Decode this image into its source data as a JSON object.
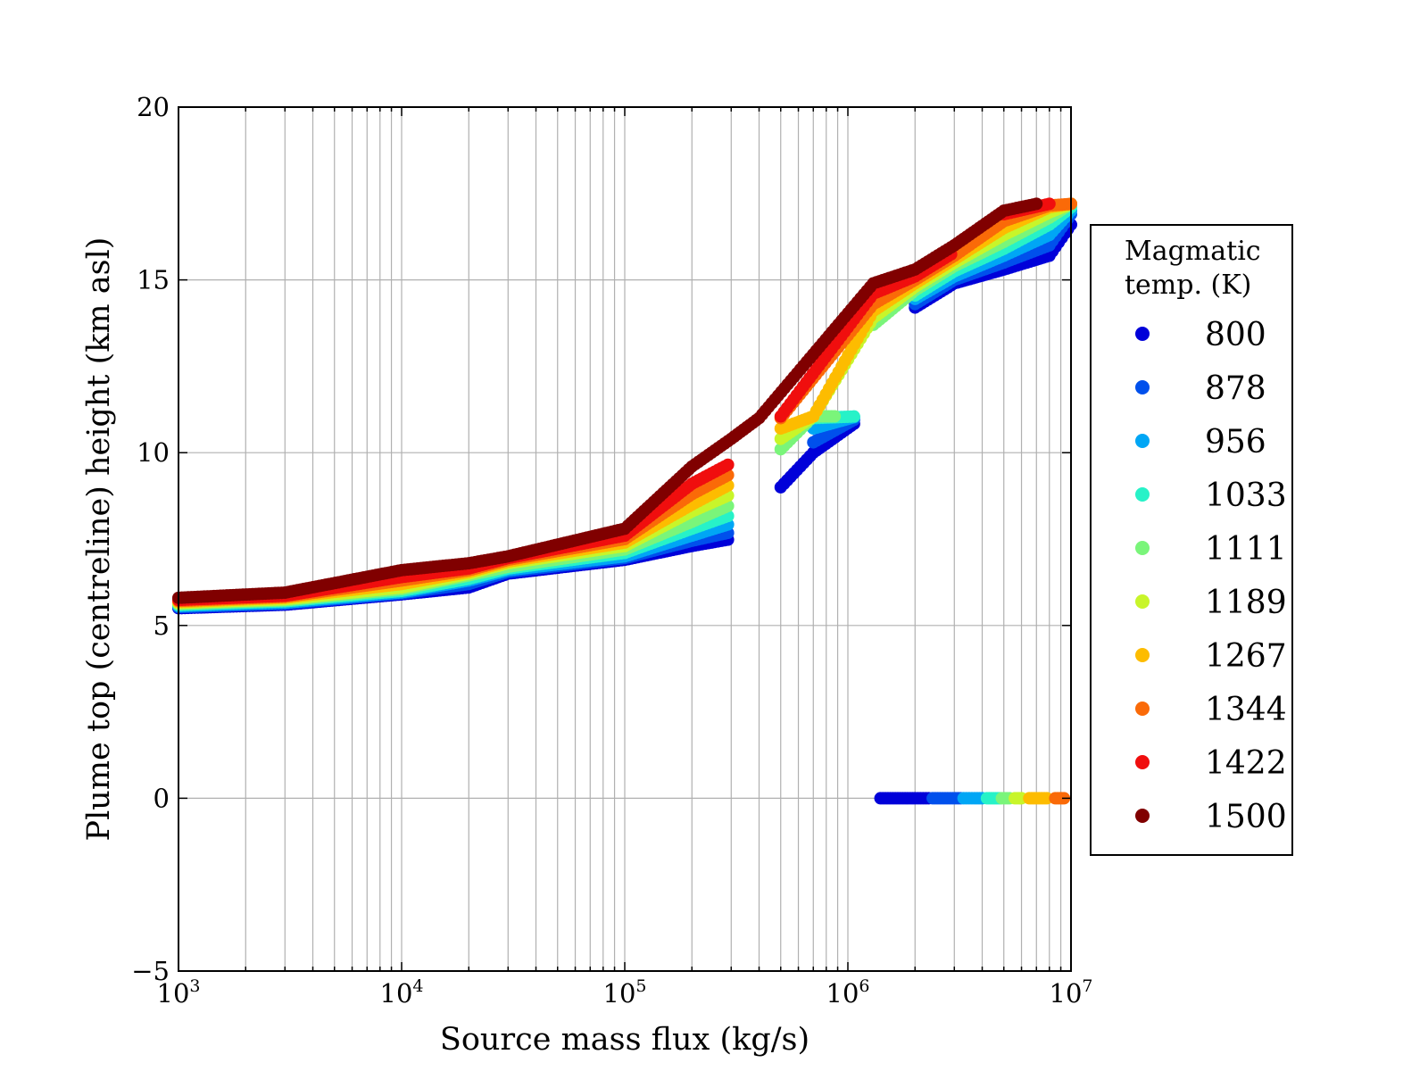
{
  "chart_data": {
    "type": "scatter",
    "title": "",
    "xlabel": "Source mass flux (kg/s)",
    "ylabel": "Plume top (centreline) height (km asl)",
    "x_scale": "log",
    "xlim": [
      1000,
      10000000
    ],
    "ylim": [
      -5,
      20
    ],
    "grid": true,
    "x_tick_labels": [
      {
        "base": "10",
        "exp": "3"
      },
      {
        "base": "10",
        "exp": "4"
      },
      {
        "base": "10",
        "exp": "5"
      },
      {
        "base": "10",
        "exp": "6"
      },
      {
        "base": "10",
        "exp": "7"
      }
    ],
    "y_ticks": [
      -5,
      0,
      5,
      10,
      15,
      20
    ],
    "y_tick_labels": [
      "−5",
      "0",
      "5",
      "10",
      "15",
      "20"
    ],
    "legend": {
      "title_line1": "Magmatic",
      "title_line2": "temp. (K)",
      "placement": "right-outside",
      "entries": [
        {
          "label": "800",
          "color": "#0000d9"
        },
        {
          "label": "878",
          "color": "#0050ec"
        },
        {
          "label": "956",
          "color": "#00a6f5"
        },
        {
          "label": "1033",
          "color": "#27f2c8"
        },
        {
          "label": "1111",
          "color": "#7af57a"
        },
        {
          "label": "1189",
          "color": "#c8f52a"
        },
        {
          "label": "1267",
          "color": "#fdbc00"
        },
        {
          "label": "1344",
          "color": "#fa6a08"
        },
        {
          "label": "1422",
          "color": "#f00e0e"
        },
        {
          "label": "1500",
          "color": "#800000"
        }
      ]
    },
    "series": [
      {
        "name": "800",
        "x": [
          1000,
          3000,
          10000,
          20000,
          30000,
          100000,
          200000,
          300000,
          500000,
          700000,
          1100000,
          1300000,
          2000000,
          3000000,
          5000000,
          8000000,
          10000000
        ],
        "y": [
          5.5,
          5.6,
          5.9,
          6.1,
          6.5,
          6.9,
          7.3,
          7.5,
          9.0,
          10.0,
          10.9,
          12.5,
          14.2,
          14.9,
          15.3,
          15.7,
          16.6
        ],
        "low_x": [
          1400000,
          2000000,
          2300000
        ],
        "low_y": [
          0.0,
          0.0,
          0.0
        ]
      },
      {
        "name": "878",
        "x": [
          1000,
          3000,
          10000,
          20000,
          30000,
          100000,
          200000,
          300000,
          500000,
          700000,
          1100000,
          1300000,
          2000000,
          3000000,
          5000000,
          8000000,
          10000000
        ],
        "y": [
          5.53,
          5.63,
          5.93,
          6.2,
          6.55,
          6.95,
          7.45,
          7.7,
          9.2,
          10.3,
          11.0,
          12.8,
          14.3,
          15.0,
          15.5,
          16.0,
          16.9
        ],
        "low_x": [
          2400000,
          2800000,
          3200000
        ],
        "low_y": [
          0.0,
          0.0,
          0.0
        ]
      },
      {
        "name": "956",
        "x": [
          1000,
          3000,
          10000,
          20000,
          30000,
          100000,
          200000,
          300000,
          500000,
          700000,
          1100000,
          1300000,
          2000000,
          3000000,
          5000000,
          8000000,
          10000000
        ],
        "y": [
          5.56,
          5.66,
          5.96,
          6.3,
          6.6,
          7.0,
          7.6,
          7.95,
          9.5,
          10.7,
          11.05,
          13.1,
          14.45,
          15.1,
          15.7,
          16.3,
          17.0
        ],
        "low_x": [
          3300000,
          3700000,
          4000000
        ],
        "low_y": [
          0.0,
          0.0,
          0.0
        ]
      },
      {
        "name": "1033",
        "x": [
          1000,
          3000,
          10000,
          20000,
          30000,
          100000,
          200000,
          300000,
          500000,
          700000,
          1100000,
          1300000,
          2000000,
          3000000,
          5000000,
          8000000,
          10000000
        ],
        "y": [
          5.59,
          5.7,
          6.0,
          6.35,
          6.65,
          7.1,
          7.8,
          8.2,
          9.8,
          11.0,
          11.05,
          13.4,
          14.55,
          15.25,
          15.9,
          16.6,
          17.1
        ],
        "low_x": [
          4200000,
          4500000,
          4800000
        ],
        "low_y": [
          0.0,
          0.0,
          0.0
        ]
      },
      {
        "name": "1111",
        "x": [
          1000,
          3000,
          10000,
          20000,
          30000,
          100000,
          200000,
          300000,
          500000,
          700000,
          900000,
          1300000,
          2000000,
          3000000,
          5000000,
          8000000,
          10000000
        ],
        "y": [
          5.62,
          5.73,
          6.05,
          6.45,
          6.7,
          7.2,
          8.0,
          8.5,
          10.1,
          11.05,
          11.05,
          13.7,
          14.7,
          15.4,
          16.1,
          16.8,
          17.2
        ],
        "low_x": [
          4900000,
          5300000
        ],
        "low_y": [
          0.0,
          0.0
        ]
      },
      {
        "name": "1189",
        "x": [
          1000,
          3000,
          10000,
          20000,
          30000,
          100000,
          200000,
          300000,
          500000,
          700000,
          1300000,
          2000000,
          3000000,
          5000000,
          8000000,
          10000000
        ],
        "y": [
          5.65,
          5.76,
          6.1,
          6.5,
          6.8,
          7.3,
          8.3,
          8.8,
          10.4,
          11.05,
          13.9,
          14.8,
          15.5,
          16.3,
          16.95,
          17.2
        ],
        "low_x": [
          5600000,
          6000000
        ],
        "low_y": [
          0.0,
          0.0
        ]
      },
      {
        "name": "1267",
        "x": [
          1000,
          3000,
          10000,
          20000,
          30000,
          100000,
          200000,
          300000,
          500000,
          700000,
          1300000,
          2000000,
          3000000,
          5000000,
          8000000,
          10000000
        ],
        "y": [
          5.68,
          5.8,
          6.2,
          6.55,
          6.85,
          7.4,
          8.5,
          9.1,
          10.7,
          11.05,
          14.1,
          14.9,
          15.6,
          16.5,
          17.1,
          17.2
        ],
        "low_x": [
          6500000,
          7200000,
          7800000
        ],
        "low_y": [
          0.0,
          0.0,
          0.0
        ]
      },
      {
        "name": "1344",
        "x": [
          1000,
          3000,
          10000,
          20000,
          30000,
          100000,
          200000,
          300000,
          500000,
          1300000,
          2000000,
          3000000,
          5000000,
          8000000,
          10000000
        ],
        "y": [
          5.71,
          5.83,
          6.3,
          6.6,
          6.9,
          7.5,
          8.8,
          9.4,
          11.0,
          14.3,
          15.0,
          15.7,
          16.7,
          17.15,
          17.2
        ],
        "low_x": [
          8500000,
          9300000
        ],
        "low_y": [
          0.0,
          0.0
        ]
      },
      {
        "name": "1422",
        "x": [
          1000,
          3000,
          10000,
          20000,
          30000,
          100000,
          200000,
          300000,
          500000,
          1300000,
          2000000,
          3000000,
          5000000,
          8000000
        ],
        "y": [
          5.74,
          5.86,
          6.4,
          6.65,
          6.95,
          7.6,
          9.1,
          9.7,
          11.05,
          14.6,
          15.1,
          15.8,
          16.9,
          17.2
        ],
        "low_x": [],
        "low_y": []
      },
      {
        "name": "1500",
        "x": [
          1000,
          3000,
          10000,
          20000,
          30000,
          100000,
          200000,
          300000,
          400000,
          1300000,
          2000000,
          3000000,
          5000000,
          7000000
        ],
        "y": [
          5.8,
          5.95,
          6.6,
          6.8,
          7.0,
          7.8,
          9.6,
          10.4,
          11.0,
          14.9,
          15.3,
          16.0,
          17.0,
          17.2
        ],
        "low_x": [],
        "low_y": []
      }
    ]
  }
}
